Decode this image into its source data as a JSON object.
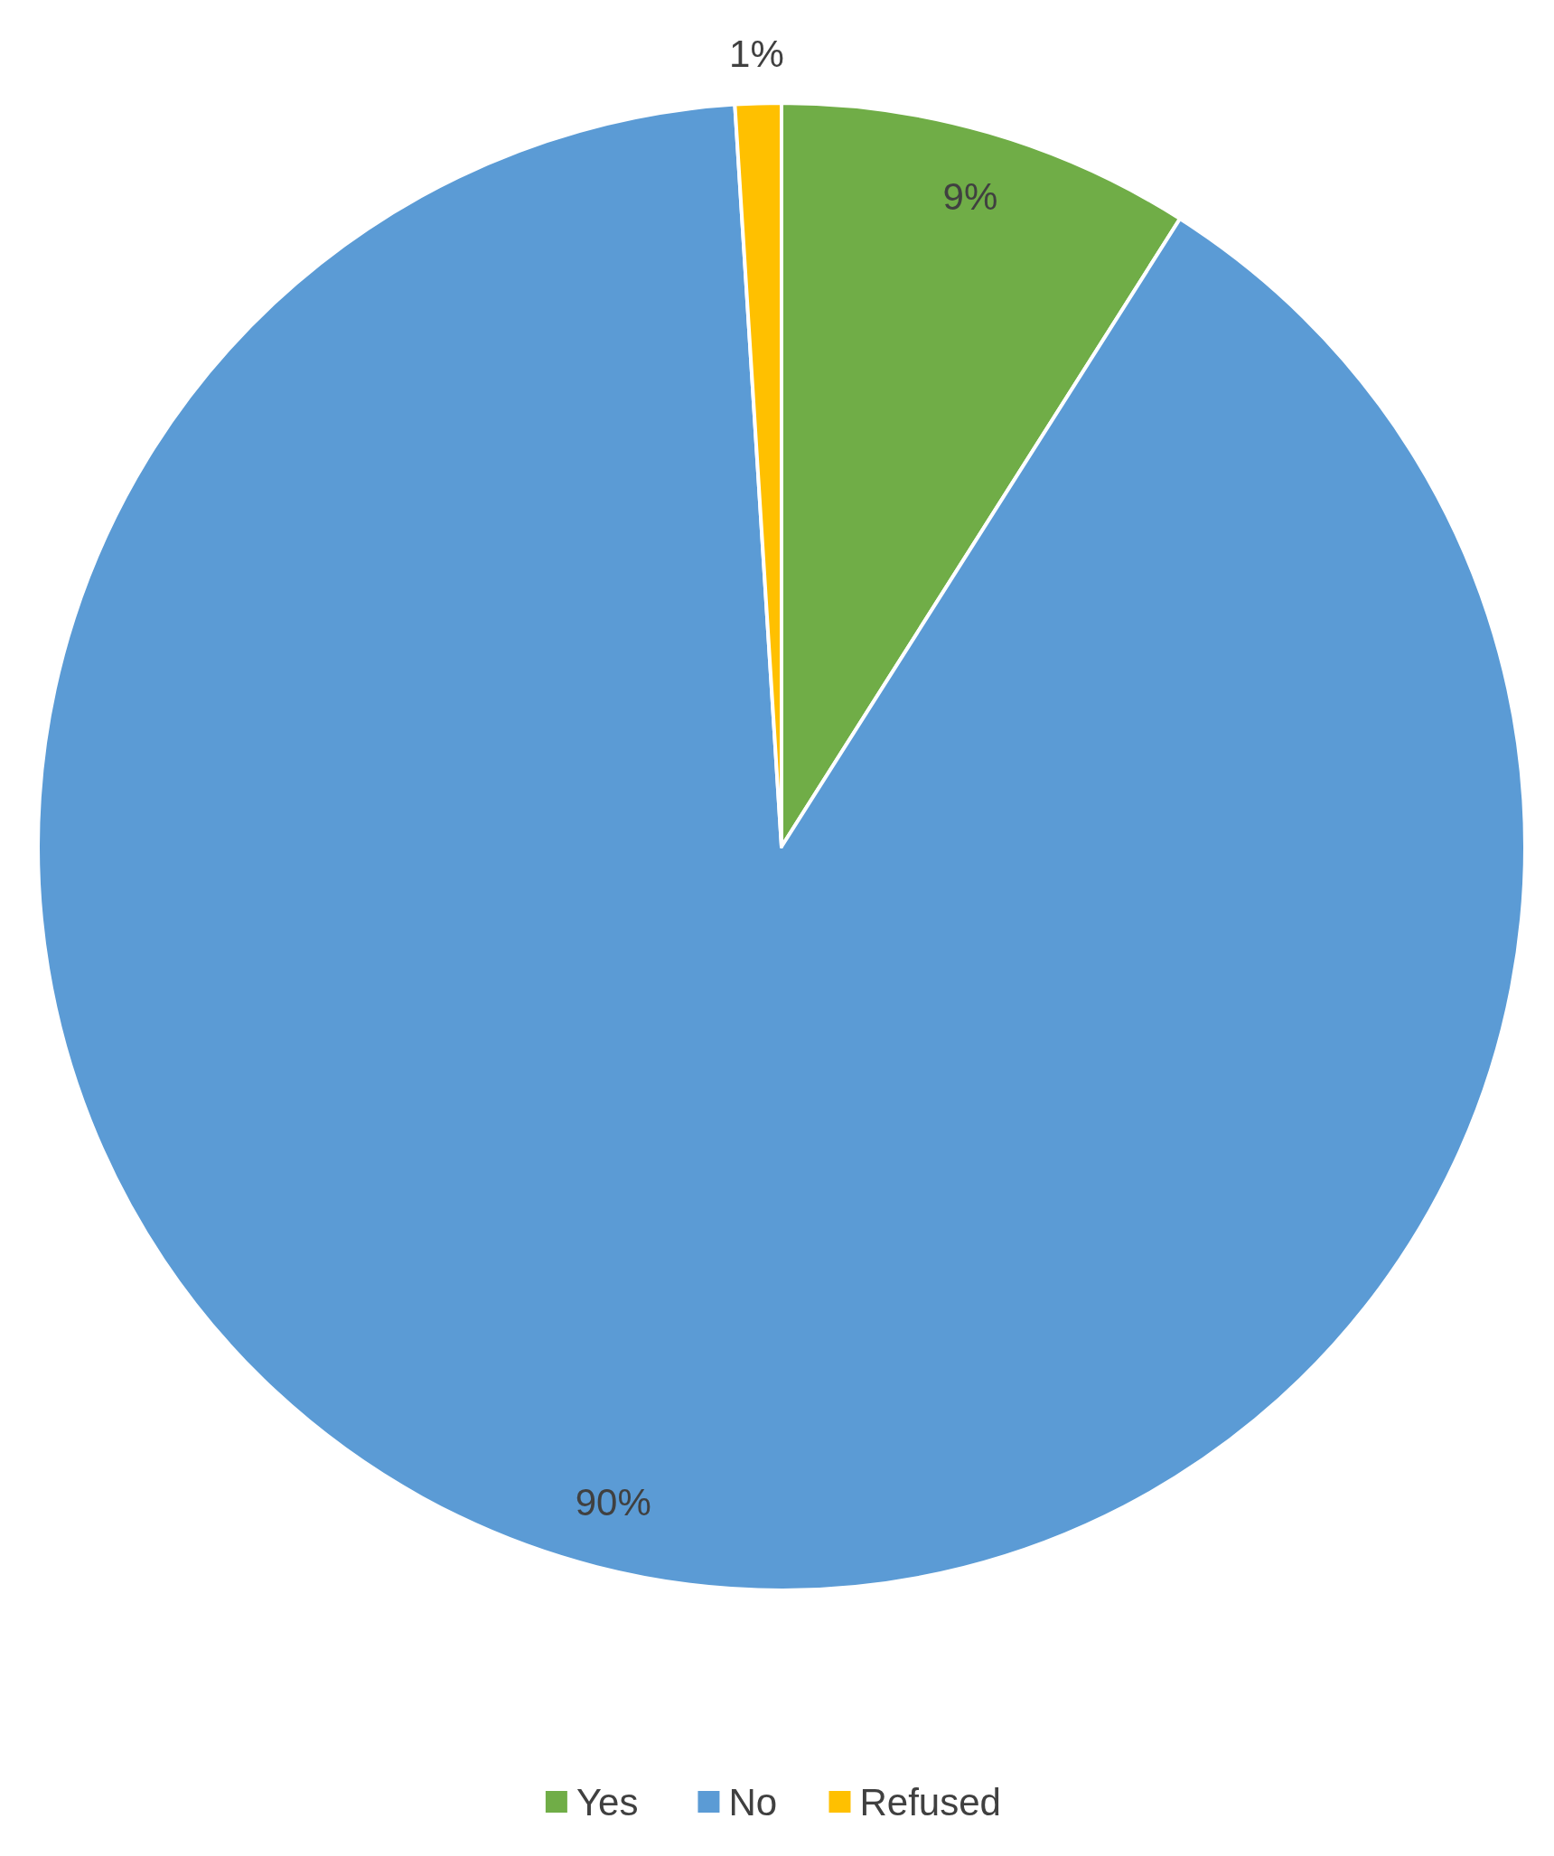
{
  "chart_data": {
    "type": "pie",
    "categories": [
      "Yes",
      "No",
      "Refused"
    ],
    "values": [
      9,
      90,
      1
    ],
    "colors": [
      "#70ad47",
      "#5b9bd5",
      "#ffc000"
    ],
    "value_labels": [
      "9%",
      "90%",
      "1%"
    ],
    "legend": "bottom"
  }
}
